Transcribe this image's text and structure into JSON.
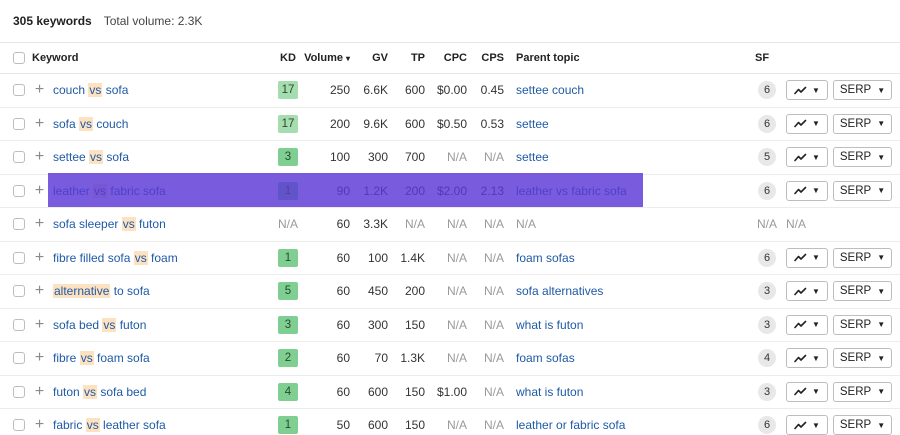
{
  "summary": {
    "keyword_count": "305 keywords",
    "total_volume": "Total volume: 2.3K"
  },
  "columns": {
    "keyword": "Keyword",
    "kd": "KD",
    "volume": "Volume",
    "gv": "GV",
    "tp": "TP",
    "cpc": "CPC",
    "cps": "CPS",
    "parent_topic": "Parent topic",
    "sf": "SF"
  },
  "sort_caret": "▾",
  "icons": {
    "checkbox": "checkbox",
    "expand": "plus-icon",
    "trend": "trend-chart-icon",
    "dropdown": "caret-down-icon"
  },
  "colors": {
    "link": "#1f5aa6",
    "highlight_word": "#fde2c2",
    "kd_easy": "#a5dcb0",
    "kd_medium": "#7fcf92",
    "selected_row_overlay": "#5a38d6"
  },
  "serp_label": "SERP",
  "rows": [
    {
      "kw": [
        {
          "t": "couch "
        },
        {
          "t": "vs",
          "h": true
        },
        {
          "t": " sofa"
        }
      ],
      "kd": "17",
      "kd_color": "#a5dcb0",
      "volume": "250",
      "gv": "6.6K",
      "tp": "600",
      "cpc": "$0.00",
      "cps": "0.45",
      "parent_topic": "settee couch",
      "sf": "6",
      "has_serp": true
    },
    {
      "kw": [
        {
          "t": "sofa "
        },
        {
          "t": "vs",
          "h": true
        },
        {
          "t": " couch"
        }
      ],
      "kd": "17",
      "kd_color": "#a5dcb0",
      "volume": "200",
      "gv": "9.6K",
      "tp": "600",
      "cpc": "$0.50",
      "cps": "0.53",
      "parent_topic": "settee",
      "sf": "6",
      "has_serp": true
    },
    {
      "kw": [
        {
          "t": "settee "
        },
        {
          "t": "vs",
          "h": true
        },
        {
          "t": " sofa"
        }
      ],
      "kd": "3",
      "kd_color": "#7fcf92",
      "volume": "100",
      "gv": "300",
      "tp": "700",
      "cpc": "N/A",
      "cps": "N/A",
      "parent_topic": "settee",
      "sf": "5",
      "has_serp": true
    },
    {
      "kw": [
        {
          "t": "leather "
        },
        {
          "t": "vs",
          "h": true
        },
        {
          "t": " fabric sofa"
        }
      ],
      "kd": "1",
      "kd_color": "#7fcf92",
      "volume": "90",
      "gv": "1.2K",
      "tp": "200",
      "cpc": "$2.00",
      "cps": "2.13",
      "parent_topic": "leather vs fabric sofa",
      "sf": "6",
      "has_serp": true,
      "selected": true
    },
    {
      "kw": [
        {
          "t": "sofa sleeper "
        },
        {
          "t": "vs",
          "h": true
        },
        {
          "t": " futon"
        }
      ],
      "kd": "N/A",
      "kd_color": "",
      "volume": "60",
      "gv": "3.3K",
      "tp": "N/A",
      "cpc": "N/A",
      "cps": "N/A",
      "parent_topic": "N/A",
      "sf": "N/A",
      "sf_trend": "N/A",
      "has_serp": false
    },
    {
      "kw": [
        {
          "t": "fibre filled sofa "
        },
        {
          "t": "vs",
          "h": true
        },
        {
          "t": " foam"
        }
      ],
      "kd": "1",
      "kd_color": "#7fcf92",
      "volume": "60",
      "gv": "100",
      "tp": "1.4K",
      "cpc": "N/A",
      "cps": "N/A",
      "parent_topic": "foam sofas",
      "sf": "6",
      "has_serp": true
    },
    {
      "kw": [
        {
          "t": "alternative",
          "h": true
        },
        {
          "t": " to sofa"
        }
      ],
      "kd": "5",
      "kd_color": "#7fcf92",
      "volume": "60",
      "gv": "450",
      "tp": "200",
      "cpc": "N/A",
      "cps": "N/A",
      "parent_topic": "sofa alternatives",
      "sf": "3",
      "has_serp": true
    },
    {
      "kw": [
        {
          "t": "sofa bed "
        },
        {
          "t": "vs",
          "h": true
        },
        {
          "t": " futon"
        }
      ],
      "kd": "3",
      "kd_color": "#7fcf92",
      "volume": "60",
      "gv": "300",
      "tp": "150",
      "cpc": "N/A",
      "cps": "N/A",
      "parent_topic": "what is futon",
      "sf": "3",
      "has_serp": true
    },
    {
      "kw": [
        {
          "t": "fibre "
        },
        {
          "t": "vs",
          "h": true
        },
        {
          "t": " foam sofa"
        }
      ],
      "kd": "2",
      "kd_color": "#7fcf92",
      "volume": "60",
      "gv": "70",
      "tp": "1.3K",
      "cpc": "N/A",
      "cps": "N/A",
      "parent_topic": "foam sofas",
      "sf": "4",
      "has_serp": true
    },
    {
      "kw": [
        {
          "t": "futon "
        },
        {
          "t": "vs",
          "h": true
        },
        {
          "t": " sofa bed"
        }
      ],
      "kd": "4",
      "kd_color": "#7fcf92",
      "volume": "60",
      "gv": "600",
      "tp": "150",
      "cpc": "$1.00",
      "cps": "N/A",
      "parent_topic": "what is futon",
      "sf": "3",
      "has_serp": true
    },
    {
      "kw": [
        {
          "t": "fabric "
        },
        {
          "t": "vs",
          "h": true
        },
        {
          "t": " leather sofa"
        }
      ],
      "kd": "1",
      "kd_color": "#7fcf92",
      "volume": "50",
      "gv": "600",
      "tp": "150",
      "cpc": "N/A",
      "cps": "N/A",
      "parent_topic": "leather or fabric sofa",
      "sf": "6",
      "has_serp": true
    }
  ]
}
